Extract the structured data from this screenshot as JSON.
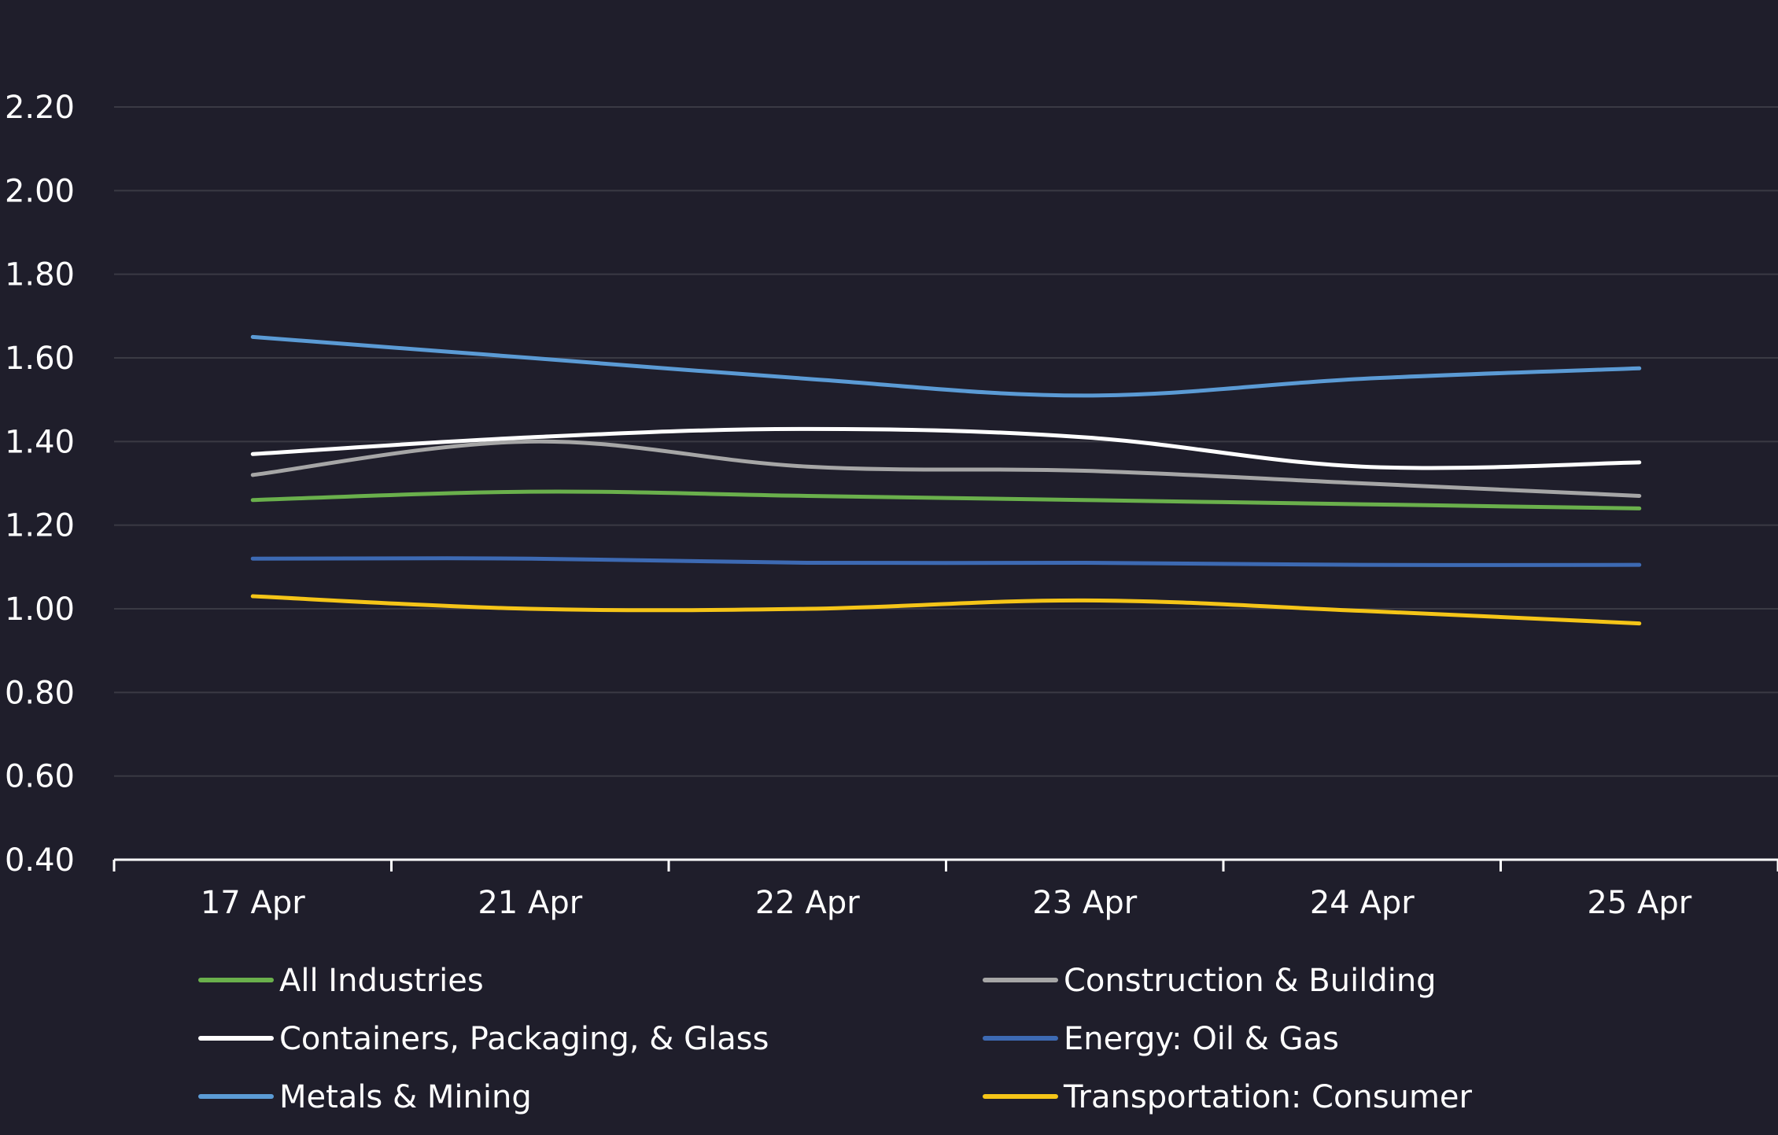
{
  "chart_data": {
    "type": "line",
    "title": "",
    "xlabel": "",
    "ylabel": "",
    "categories": [
      "17 Apr",
      "21 Apr",
      "22 Apr",
      "23 Apr",
      "24 Apr",
      "25 Apr"
    ],
    "y_ticks": [
      "0.40",
      "0.60",
      "0.80",
      "1.00",
      "1.20",
      "1.40",
      "1.60",
      "1.80",
      "2.00",
      "2.20"
    ],
    "ylim": [
      0.4,
      2.28
    ],
    "grid": true,
    "legend_position": "bottom",
    "series": [
      {
        "name": "All Industries",
        "color": "#6ab04c",
        "values": [
          1.26,
          1.28,
          1.27,
          1.26,
          1.25,
          1.24
        ]
      },
      {
        "name": "Construction & Building",
        "color": "#a6a6a6",
        "values": [
          1.32,
          1.4,
          1.34,
          1.33,
          1.3,
          1.27
        ]
      },
      {
        "name": "Containers, Packaging, & Glass",
        "color": "#ffffff",
        "values": [
          1.37,
          1.41,
          1.43,
          1.41,
          1.34,
          1.35
        ]
      },
      {
        "name": "Energy: Oil & Gas",
        "color": "#3d6ab3",
        "values": [
          1.12,
          1.12,
          1.11,
          1.11,
          1.105,
          1.105
        ]
      },
      {
        "name": "Metals & Mining",
        "color": "#5b9bd5",
        "values": [
          1.65,
          1.6,
          1.55,
          1.51,
          1.55,
          1.575
        ]
      },
      {
        "name": "Transportation: Consumer",
        "color": "#f5c518",
        "values": [
          1.03,
          1.0,
          1.0,
          1.02,
          0.995,
          0.965
        ]
      }
    ]
  }
}
